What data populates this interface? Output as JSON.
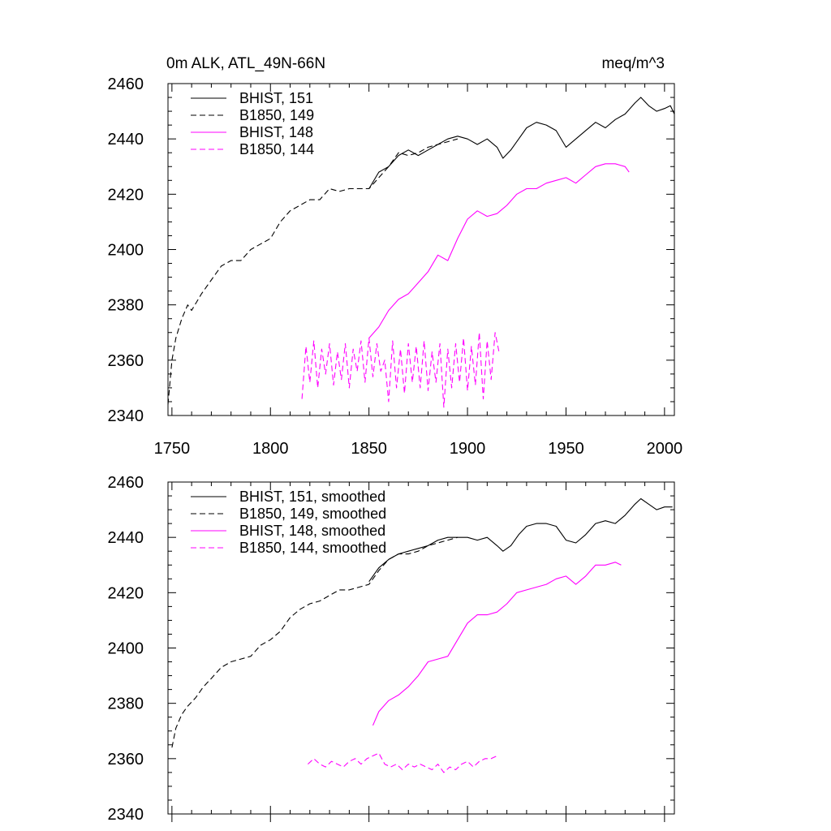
{
  "chart_data": [
    {
      "type": "line",
      "title": "0m ALK, ATL_49N-66N",
      "units": "meq/m^3",
      "xlabel": "",
      "ylabel": "",
      "xlim": [
        1748,
        2005
      ],
      "ylim": [
        2340,
        2460
      ],
      "xticks": [
        "1750",
        "1800",
        "1850",
        "1900",
        "1950",
        "2000"
      ],
      "yticks": [
        "2340",
        "2360",
        "2380",
        "2400",
        "2420",
        "2440",
        "2460"
      ],
      "legend_position": "top-left",
      "grid": false,
      "series": [
        {
          "name": "BHIST, 151",
          "color": "#000000",
          "dash": "solid",
          "x": [
            1850,
            1855,
            1860,
            1865,
            1870,
            1875,
            1880,
            1885,
            1890,
            1895,
            1900,
            1905,
            1910,
            1915,
            1918,
            1922,
            1926,
            1930,
            1935,
            1940,
            1945,
            1950,
            1955,
            1960,
            1965,
            1970,
            1975,
            1980,
            1985,
            1988,
            1992,
            1996,
            2000,
            2003,
            2005
          ],
          "y": [
            2422,
            2428,
            2430,
            2434,
            2436,
            2434,
            2436,
            2438,
            2440,
            2441,
            2440,
            2438,
            2440,
            2437,
            2433,
            2436,
            2440,
            2444,
            2446,
            2445,
            2443,
            2437,
            2440,
            2443,
            2446,
            2444,
            2447,
            2449,
            2453,
            2455,
            2452,
            2450,
            2451,
            2452,
            2449
          ]
        },
        {
          "name": "B1850, 149",
          "color": "#000000",
          "dash": "dashed",
          "x": [
            1748,
            1750,
            1752,
            1755,
            1758,
            1760,
            1765,
            1770,
            1775,
            1780,
            1785,
            1790,
            1795,
            1800,
            1805,
            1810,
            1815,
            1820,
            1825,
            1830,
            1835,
            1840,
            1845,
            1850,
            1855,
            1860,
            1865,
            1870,
            1875,
            1880,
            1885,
            1890,
            1895
          ],
          "y": [
            2344,
            2360,
            2368,
            2375,
            2380,
            2378,
            2384,
            2389,
            2394,
            2396,
            2396,
            2400,
            2402,
            2404,
            2410,
            2414,
            2416,
            2418,
            2418,
            2422,
            2421,
            2422,
            2422,
            2422,
            2426,
            2430,
            2435,
            2434,
            2435,
            2437,
            2438,
            2439,
            2440
          ]
        },
        {
          "name": "BHIST, 148",
          "color": "#ff00ff",
          "dash": "solid",
          "x": [
            1850,
            1855,
            1860,
            1865,
            1870,
            1875,
            1880,
            1885,
            1890,
            1895,
            1900,
            1905,
            1910,
            1915,
            1920,
            1925,
            1930,
            1935,
            1940,
            1945,
            1950,
            1955,
            1960,
            1965,
            1970,
            1975,
            1980,
            1982
          ],
          "y": [
            2368,
            2372,
            2378,
            2382,
            2384,
            2388,
            2392,
            2398,
            2396,
            2404,
            2411,
            2414,
            2412,
            2413,
            2416,
            2420,
            2422,
            2422,
            2424,
            2425,
            2426,
            2424,
            2427,
            2430,
            2431,
            2431,
            2430,
            2428
          ]
        },
        {
          "name": "B1850, 144",
          "color": "#ff00ff",
          "dash": "dashed",
          "x": [
            1816,
            1818,
            1820,
            1822,
            1824,
            1826,
            1828,
            1830,
            1832,
            1834,
            1836,
            1838,
            1840,
            1842,
            1844,
            1846,
            1848,
            1850,
            1852,
            1854,
            1856,
            1858,
            1860,
            1862,
            1864,
            1866,
            1868,
            1870,
            1872,
            1874,
            1876,
            1878,
            1880,
            1882,
            1884,
            1886,
            1888,
            1890,
            1892,
            1894,
            1896,
            1898,
            1900,
            1902,
            1904,
            1906,
            1908,
            1910,
            1912,
            1914,
            1916
          ],
          "y": [
            2346,
            2365,
            2352,
            2367,
            2350,
            2364,
            2355,
            2366,
            2351,
            2363,
            2353,
            2366,
            2350,
            2364,
            2356,
            2367,
            2352,
            2368,
            2354,
            2366,
            2356,
            2360,
            2345,
            2367,
            2350,
            2364,
            2348,
            2366,
            2352,
            2365,
            2350,
            2367,
            2349,
            2363,
            2352,
            2366,
            2343,
            2364,
            2350,
            2366,
            2352,
            2368,
            2349,
            2365,
            2351,
            2370,
            2346,
            2367,
            2353,
            2370,
            2363
          ]
        }
      ]
    },
    {
      "type": "line",
      "title": "",
      "xlabel": "",
      "ylabel": "",
      "xlim": [
        1748,
        2005
      ],
      "ylim": [
        2340,
        2460
      ],
      "yticks": [
        "2340",
        "2360",
        "2380",
        "2400",
        "2420",
        "2440",
        "2460"
      ],
      "legend_position": "top-left",
      "grid": false,
      "series": [
        {
          "name": "BHIST, 151, smoothed",
          "color": "#000000",
          "dash": "solid",
          "x": [
            1850,
            1855,
            1860,
            1865,
            1870,
            1875,
            1880,
            1885,
            1890,
            1895,
            1900,
            1905,
            1910,
            1915,
            1918,
            1922,
            1926,
            1930,
            1935,
            1940,
            1945,
            1950,
            1955,
            1960,
            1965,
            1970,
            1975,
            1980,
            1985,
            1988,
            1992,
            1996,
            2000,
            2004
          ],
          "y": [
            2424,
            2429,
            2432,
            2434,
            2435,
            2436,
            2437,
            2439,
            2440,
            2440,
            2440,
            2439,
            2440,
            2437,
            2435,
            2437,
            2441,
            2444,
            2445,
            2445,
            2444,
            2439,
            2438,
            2441,
            2445,
            2446,
            2445,
            2448,
            2452,
            2454,
            2452,
            2450,
            2451,
            2451
          ]
        },
        {
          "name": "B1850, 149, smoothed",
          "color": "#000000",
          "dash": "dashed",
          "x": [
            1750,
            1752,
            1755,
            1758,
            1762,
            1766,
            1770,
            1775,
            1780,
            1785,
            1790,
            1795,
            1800,
            1805,
            1810,
            1815,
            1820,
            1825,
            1830,
            1835,
            1840,
            1845,
            1850,
            1855,
            1860,
            1865,
            1870,
            1875,
            1880,
            1885,
            1890,
            1895
          ],
          "y": [
            2364,
            2371,
            2376,
            2379,
            2382,
            2386,
            2389,
            2393,
            2395,
            2396,
            2397,
            2401,
            2403,
            2406,
            2411,
            2414,
            2416,
            2417,
            2419,
            2421,
            2421,
            2422,
            2423,
            2428,
            2432,
            2434,
            2434,
            2435,
            2437,
            2438,
            2439,
            2440
          ]
        },
        {
          "name": "BHIST, 148, smoothed",
          "color": "#ff00ff",
          "dash": "solid",
          "x": [
            1852,
            1855,
            1860,
            1865,
            1870,
            1875,
            1880,
            1885,
            1890,
            1895,
            1900,
            1905,
            1910,
            1915,
            1920,
            1925,
            1930,
            1935,
            1940,
            1945,
            1950,
            1955,
            1960,
            1965,
            1970,
            1975,
            1978
          ],
          "y": [
            2372,
            2377,
            2381,
            2383,
            2386,
            2390,
            2395,
            2396,
            2397,
            2403,
            2409,
            2412,
            2412,
            2413,
            2416,
            2420,
            2421,
            2422,
            2423,
            2425,
            2426,
            2423,
            2426,
            2430,
            2430,
            2431,
            2430
          ]
        },
        {
          "name": "B1850, 144, smoothed",
          "color": "#ff00ff",
          "dash": "dashed",
          "x": [
            1819,
            1822,
            1825,
            1828,
            1831,
            1834,
            1837,
            1840,
            1843,
            1846,
            1849,
            1852,
            1855,
            1858,
            1861,
            1864,
            1867,
            1870,
            1873,
            1876,
            1879,
            1882,
            1885,
            1888,
            1891,
            1894,
            1897,
            1900,
            1903,
            1906,
            1909,
            1912,
            1915
          ],
          "y": [
            2358,
            2360,
            2358,
            2357,
            2359,
            2358,
            2357,
            2359,
            2360,
            2358,
            2360,
            2361,
            2362,
            2358,
            2357,
            2358,
            2356,
            2358,
            2357,
            2358,
            2357,
            2356,
            2358,
            2355,
            2357,
            2356,
            2358,
            2359,
            2357,
            2359,
            2360,
            2360,
            2361
          ]
        }
      ]
    }
  ]
}
